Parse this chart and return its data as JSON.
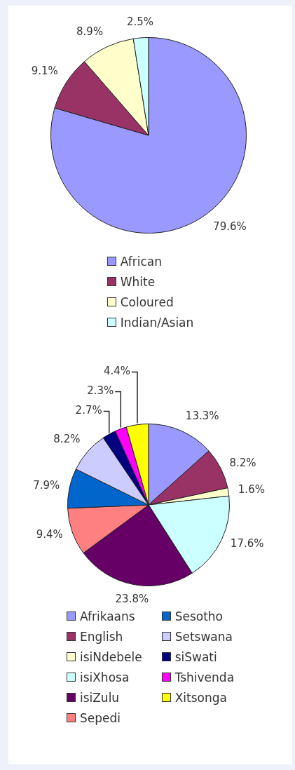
{
  "chart_data": [
    {
      "type": "pie",
      "categories": [
        "African",
        "White",
        "Coloured",
        "Indian/Asian"
      ],
      "values": [
        79.6,
        9.1,
        8.9,
        2.5
      ],
      "colors": [
        "#9999ff",
        "#993366",
        "#ffffcc",
        "#ccffff"
      ],
      "value_labels": [
        "79.6%",
        "9.1%",
        "8.9%",
        "2.5%"
      ],
      "legend": "bottom"
    },
    {
      "type": "pie",
      "categories": [
        "Afrikaans",
        "English",
        "isiNdebele",
        "isiXhosa",
        "isiZulu",
        "Sepedi",
        "Sesotho",
        "Setswana",
        "siSwati",
        "Tshivenda",
        "Xitsonga"
      ],
      "values": [
        13.3,
        8.2,
        1.6,
        17.6,
        23.8,
        9.4,
        7.9,
        8.2,
        2.7,
        2.3,
        4.4
      ],
      "colors": [
        "#9999ff",
        "#993366",
        "#ffffcc",
        "#ccffff",
        "#660066",
        "#ff8080",
        "#0066cc",
        "#ccccff",
        "#000080",
        "#ff00ff",
        "#ffff00"
      ],
      "value_labels": [
        "13.3%",
        "8.2%",
        "1.6%",
        "17.6%",
        "23.8%",
        "9.4%",
        "7.9%",
        "8.2%",
        "2.7%",
        "2.3%",
        "4.4%"
      ],
      "legend": "bottom"
    }
  ]
}
